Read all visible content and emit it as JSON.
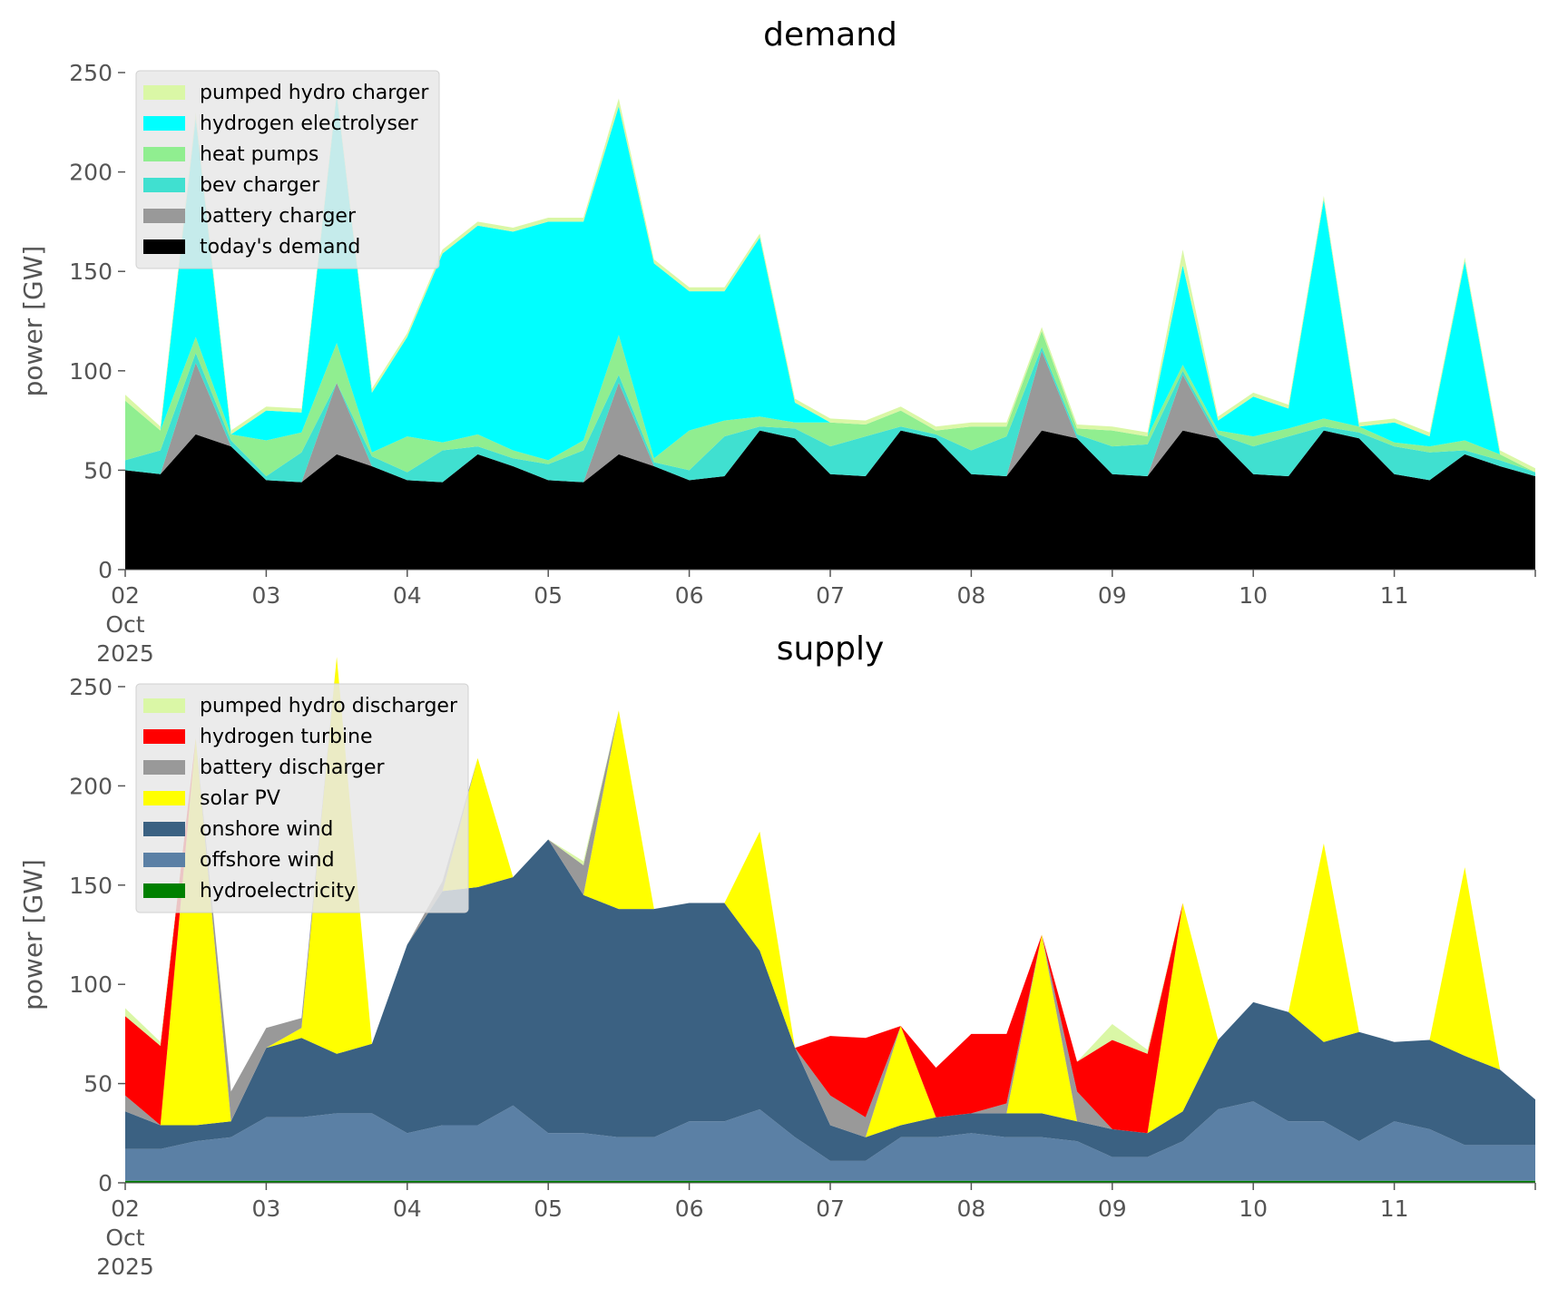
{
  "chart_data": [
    {
      "type": "area",
      "stacked": true,
      "title": "demand",
      "xlabel": "",
      "ylabel": "power [GW]",
      "ylim": [
        0,
        250
      ],
      "yticks": [
        0,
        50,
        100,
        150,
        200,
        250
      ],
      "xlim": [
        "2025-10-02",
        "2025-10-12"
      ],
      "xticks": [
        {
          "date": "2025-10-02",
          "label": [
            "02",
            "Oct",
            "2025"
          ]
        },
        {
          "date": "2025-10-03",
          "label": [
            "03"
          ]
        },
        {
          "date": "2025-10-04",
          "label": [
            "04"
          ]
        },
        {
          "date": "2025-10-05",
          "label": [
            "05"
          ]
        },
        {
          "date": "2025-10-06",
          "label": [
            "06"
          ]
        },
        {
          "date": "2025-10-07",
          "label": [
            "07"
          ]
        },
        {
          "date": "2025-10-08",
          "label": [
            "08"
          ]
        },
        {
          "date": "2025-10-09",
          "label": [
            "09"
          ]
        },
        {
          "date": "2025-10-10",
          "label": [
            "10"
          ]
        },
        {
          "date": "2025-10-11",
          "label": [
            "11"
          ]
        }
      ],
      "grid": false,
      "legend_position": "top-left",
      "x": [
        "2025-10-02 00:00",
        "2025-10-02 06:00",
        "2025-10-02 12:00",
        "2025-10-02 18:00",
        "2025-10-03 00:00",
        "2025-10-03 06:00",
        "2025-10-03 12:00",
        "2025-10-03 18:00",
        "2025-10-04 00:00",
        "2025-10-04 06:00",
        "2025-10-04 12:00",
        "2025-10-04 18:00",
        "2025-10-05 00:00",
        "2025-10-05 06:00",
        "2025-10-05 12:00",
        "2025-10-05 18:00",
        "2025-10-06 00:00",
        "2025-10-06 06:00",
        "2025-10-06 12:00",
        "2025-10-06 18:00",
        "2025-10-07 00:00",
        "2025-10-07 06:00",
        "2025-10-07 12:00",
        "2025-10-07 18:00",
        "2025-10-08 00:00",
        "2025-10-08 06:00",
        "2025-10-08 12:00",
        "2025-10-08 18:00",
        "2025-10-09 00:00",
        "2025-10-09 06:00",
        "2025-10-09 12:00",
        "2025-10-09 18:00",
        "2025-10-10 00:00",
        "2025-10-10 06:00",
        "2025-10-10 12:00",
        "2025-10-10 18:00",
        "2025-10-11 00:00",
        "2025-10-11 06:00",
        "2025-10-11 12:00",
        "2025-10-11 18:00",
        "2025-10-12 00:00"
      ],
      "series": [
        {
          "name": "today's demand",
          "color": "#000000",
          "values": [
            50,
            48,
            68,
            62,
            45,
            44,
            58,
            52,
            45,
            44,
            58,
            52,
            45,
            44,
            58,
            52,
            45,
            47,
            70,
            66,
            48,
            47,
            70,
            66,
            48,
            47,
            70,
            66,
            48,
            47,
            70,
            66,
            48,
            47,
            70,
            66,
            48,
            45,
            58,
            52,
            47
          ]
        },
        {
          "name": "battery charger",
          "color": "#999999",
          "values": [
            0,
            0,
            36,
            0,
            0,
            0,
            36,
            0,
            0,
            0,
            0,
            0,
            0,
            0,
            36,
            0,
            0,
            0,
            0,
            0,
            0,
            0,
            0,
            0,
            0,
            0,
            40,
            0,
            0,
            0,
            28,
            0,
            0,
            0,
            0,
            0,
            0,
            0,
            0,
            0,
            0
          ]
        },
        {
          "name": "bev charger",
          "color": "#40e0d0",
          "values": [
            5,
            12,
            5,
            3,
            2,
            15,
            0,
            5,
            4,
            16,
            4,
            4,
            8,
            16,
            4,
            2,
            5,
            20,
            2,
            5,
            14,
            20,
            2,
            2,
            12,
            20,
            2,
            2,
            14,
            16,
            2,
            2,
            14,
            20,
            2,
            3,
            14,
            14,
            2,
            3,
            2
          ]
        },
        {
          "name": "heat pumps",
          "color": "#90ee90",
          "values": [
            30,
            10,
            8,
            3,
            18,
            10,
            20,
            2,
            18,
            4,
            6,
            4,
            2,
            5,
            20,
            2,
            20,
            8,
            5,
            3,
            12,
            6,
            8,
            2,
            12,
            5,
            8,
            3,
            8,
            4,
            3,
            2,
            5,
            4,
            4,
            3,
            2,
            3,
            5,
            3,
            0
          ]
        },
        {
          "name": "hydrogen electrolyser",
          "color": "#00ffff",
          "values": [
            0,
            0,
            110,
            0,
            15,
            10,
            125,
            30,
            50,
            95,
            105,
            110,
            120,
            110,
            115,
            98,
            70,
            65,
            90,
            10,
            0,
            0,
            0,
            0,
            0,
            0,
            0,
            0,
            0,
            0,
            50,
            5,
            20,
            10,
            110,
            0,
            10,
            5,
            90,
            0,
            0
          ]
        },
        {
          "name": "pumped hydro charger",
          "color": "#daf7a6",
          "values": [
            3,
            2,
            3,
            2,
            2,
            2,
            2,
            2,
            2,
            2,
            2,
            2,
            2,
            2,
            4,
            2,
            2,
            2,
            2,
            2,
            2,
            2,
            2,
            2,
            2,
            2,
            2,
            2,
            2,
            2,
            8,
            2,
            2,
            2,
            2,
            2,
            2,
            2,
            2,
            2,
            2
          ]
        }
      ]
    },
    {
      "type": "area",
      "stacked": true,
      "title": "supply",
      "xlabel": "",
      "ylabel": "power [GW]",
      "ylim": [
        0,
        250
      ],
      "yticks": [
        0,
        50,
        100,
        150,
        200,
        250
      ],
      "xlim": [
        "2025-10-02",
        "2025-10-12"
      ],
      "xticks": [
        {
          "date": "2025-10-02",
          "label": [
            "02",
            "Oct",
            "2025"
          ]
        },
        {
          "date": "2025-10-03",
          "label": [
            "03"
          ]
        },
        {
          "date": "2025-10-04",
          "label": [
            "04"
          ]
        },
        {
          "date": "2025-10-05",
          "label": [
            "05"
          ]
        },
        {
          "date": "2025-10-06",
          "label": [
            "06"
          ]
        },
        {
          "date": "2025-10-07",
          "label": [
            "07"
          ]
        },
        {
          "date": "2025-10-08",
          "label": [
            "08"
          ]
        },
        {
          "date": "2025-10-09",
          "label": [
            "09"
          ]
        },
        {
          "date": "2025-10-10",
          "label": [
            "10"
          ]
        },
        {
          "date": "2025-10-11",
          "label": [
            "11"
          ]
        }
      ],
      "grid": false,
      "legend_position": "top-left",
      "x": [
        "2025-10-02 00:00",
        "2025-10-02 06:00",
        "2025-10-02 12:00",
        "2025-10-02 18:00",
        "2025-10-03 00:00",
        "2025-10-03 06:00",
        "2025-10-03 12:00",
        "2025-10-03 18:00",
        "2025-10-04 00:00",
        "2025-10-04 06:00",
        "2025-10-04 12:00",
        "2025-10-04 18:00",
        "2025-10-05 00:00",
        "2025-10-05 06:00",
        "2025-10-05 12:00",
        "2025-10-05 18:00",
        "2025-10-06 00:00",
        "2025-10-06 06:00",
        "2025-10-06 12:00",
        "2025-10-06 18:00",
        "2025-10-07 00:00",
        "2025-10-07 06:00",
        "2025-10-07 12:00",
        "2025-10-07 18:00",
        "2025-10-08 00:00",
        "2025-10-08 06:00",
        "2025-10-08 12:00",
        "2025-10-08 18:00",
        "2025-10-09 00:00",
        "2025-10-09 06:00",
        "2025-10-09 12:00",
        "2025-10-09 18:00",
        "2025-10-10 00:00",
        "2025-10-10 06:00",
        "2025-10-10 12:00",
        "2025-10-10 18:00",
        "2025-10-11 00:00",
        "2025-10-11 06:00",
        "2025-10-11 12:00",
        "2025-10-11 18:00",
        "2025-10-12 00:00"
      ],
      "series": [
        {
          "name": "hydroelectricity",
          "color": "#008000",
          "values": [
            1,
            1,
            1,
            1,
            1,
            1,
            1,
            1,
            1,
            1,
            1,
            1,
            1,
            1,
            1,
            1,
            1,
            1,
            1,
            1,
            1,
            1,
            1,
            1,
            1,
            1,
            1,
            1,
            1,
            1,
            1,
            1,
            1,
            1,
            1,
            1,
            1,
            1,
            1,
            1,
            1
          ]
        },
        {
          "name": "offshore wind",
          "color": "#5b80a5",
          "values": [
            16,
            16,
            20,
            22,
            32,
            32,
            34,
            34,
            24,
            28,
            28,
            38,
            24,
            24,
            22,
            22,
            30,
            30,
            36,
            22,
            10,
            10,
            22,
            22,
            24,
            22,
            22,
            20,
            12,
            12,
            20,
            36,
            40,
            30,
            30,
            20,
            30,
            26,
            18,
            18,
            18
          ]
        },
        {
          "name": "onshore wind",
          "color": "#3b6182",
          "values": [
            19,
            12,
            8,
            8,
            35,
            40,
            30,
            35,
            95,
            118,
            120,
            115,
            148,
            120,
            115,
            115,
            110,
            110,
            80,
            45,
            18,
            12,
            6,
            10,
            10,
            12,
            12,
            10,
            14,
            12,
            15,
            35,
            50,
            55,
            40,
            55,
            40,
            45,
            45,
            38,
            23
          ]
        },
        {
          "name": "solar PV",
          "color": "#ffff00",
          "values": [
            0,
            0,
            195,
            0,
            0,
            5,
            200,
            0,
            0,
            0,
            65,
            0,
            0,
            0,
            100,
            0,
            0,
            0,
            60,
            0,
            0,
            0,
            50,
            0,
            0,
            0,
            90,
            0,
            0,
            0,
            105,
            0,
            0,
            0,
            100,
            0,
            0,
            0,
            95,
            0,
            0
          ]
        },
        {
          "name": "battery discharger",
          "color": "#999999",
          "values": [
            8,
            0,
            0,
            15,
            10,
            5,
            0,
            0,
            0,
            5,
            0,
            0,
            0,
            15,
            0,
            0,
            0,
            0,
            0,
            0,
            15,
            10,
            0,
            0,
            0,
            5,
            0,
            15,
            0,
            0,
            0,
            0,
            0,
            0,
            0,
            0,
            0,
            0,
            0,
            0,
            0
          ]
        },
        {
          "name": "hydrogen turbine",
          "color": "#ff0000",
          "values": [
            40,
            40,
            0,
            0,
            0,
            0,
            0,
            0,
            0,
            0,
            0,
            0,
            0,
            0,
            0,
            0,
            0,
            0,
            0,
            0,
            30,
            40,
            0,
            25,
            40,
            35,
            0,
            15,
            45,
            40,
            0,
            0,
            0,
            0,
            0,
            0,
            0,
            0,
            0,
            0,
            0
          ]
        },
        {
          "name": "pumped hydro discharger",
          "color": "#daf7a6",
          "values": [
            4,
            2,
            0,
            0,
            0,
            0,
            0,
            0,
            0,
            0,
            0,
            0,
            0,
            2,
            0,
            0,
            0,
            0,
            0,
            0,
            0,
            0,
            0,
            0,
            0,
            0,
            0,
            0,
            8,
            2,
            0,
            0,
            0,
            0,
            0,
            0,
            0,
            0,
            0,
            0,
            0
          ]
        }
      ]
    }
  ]
}
